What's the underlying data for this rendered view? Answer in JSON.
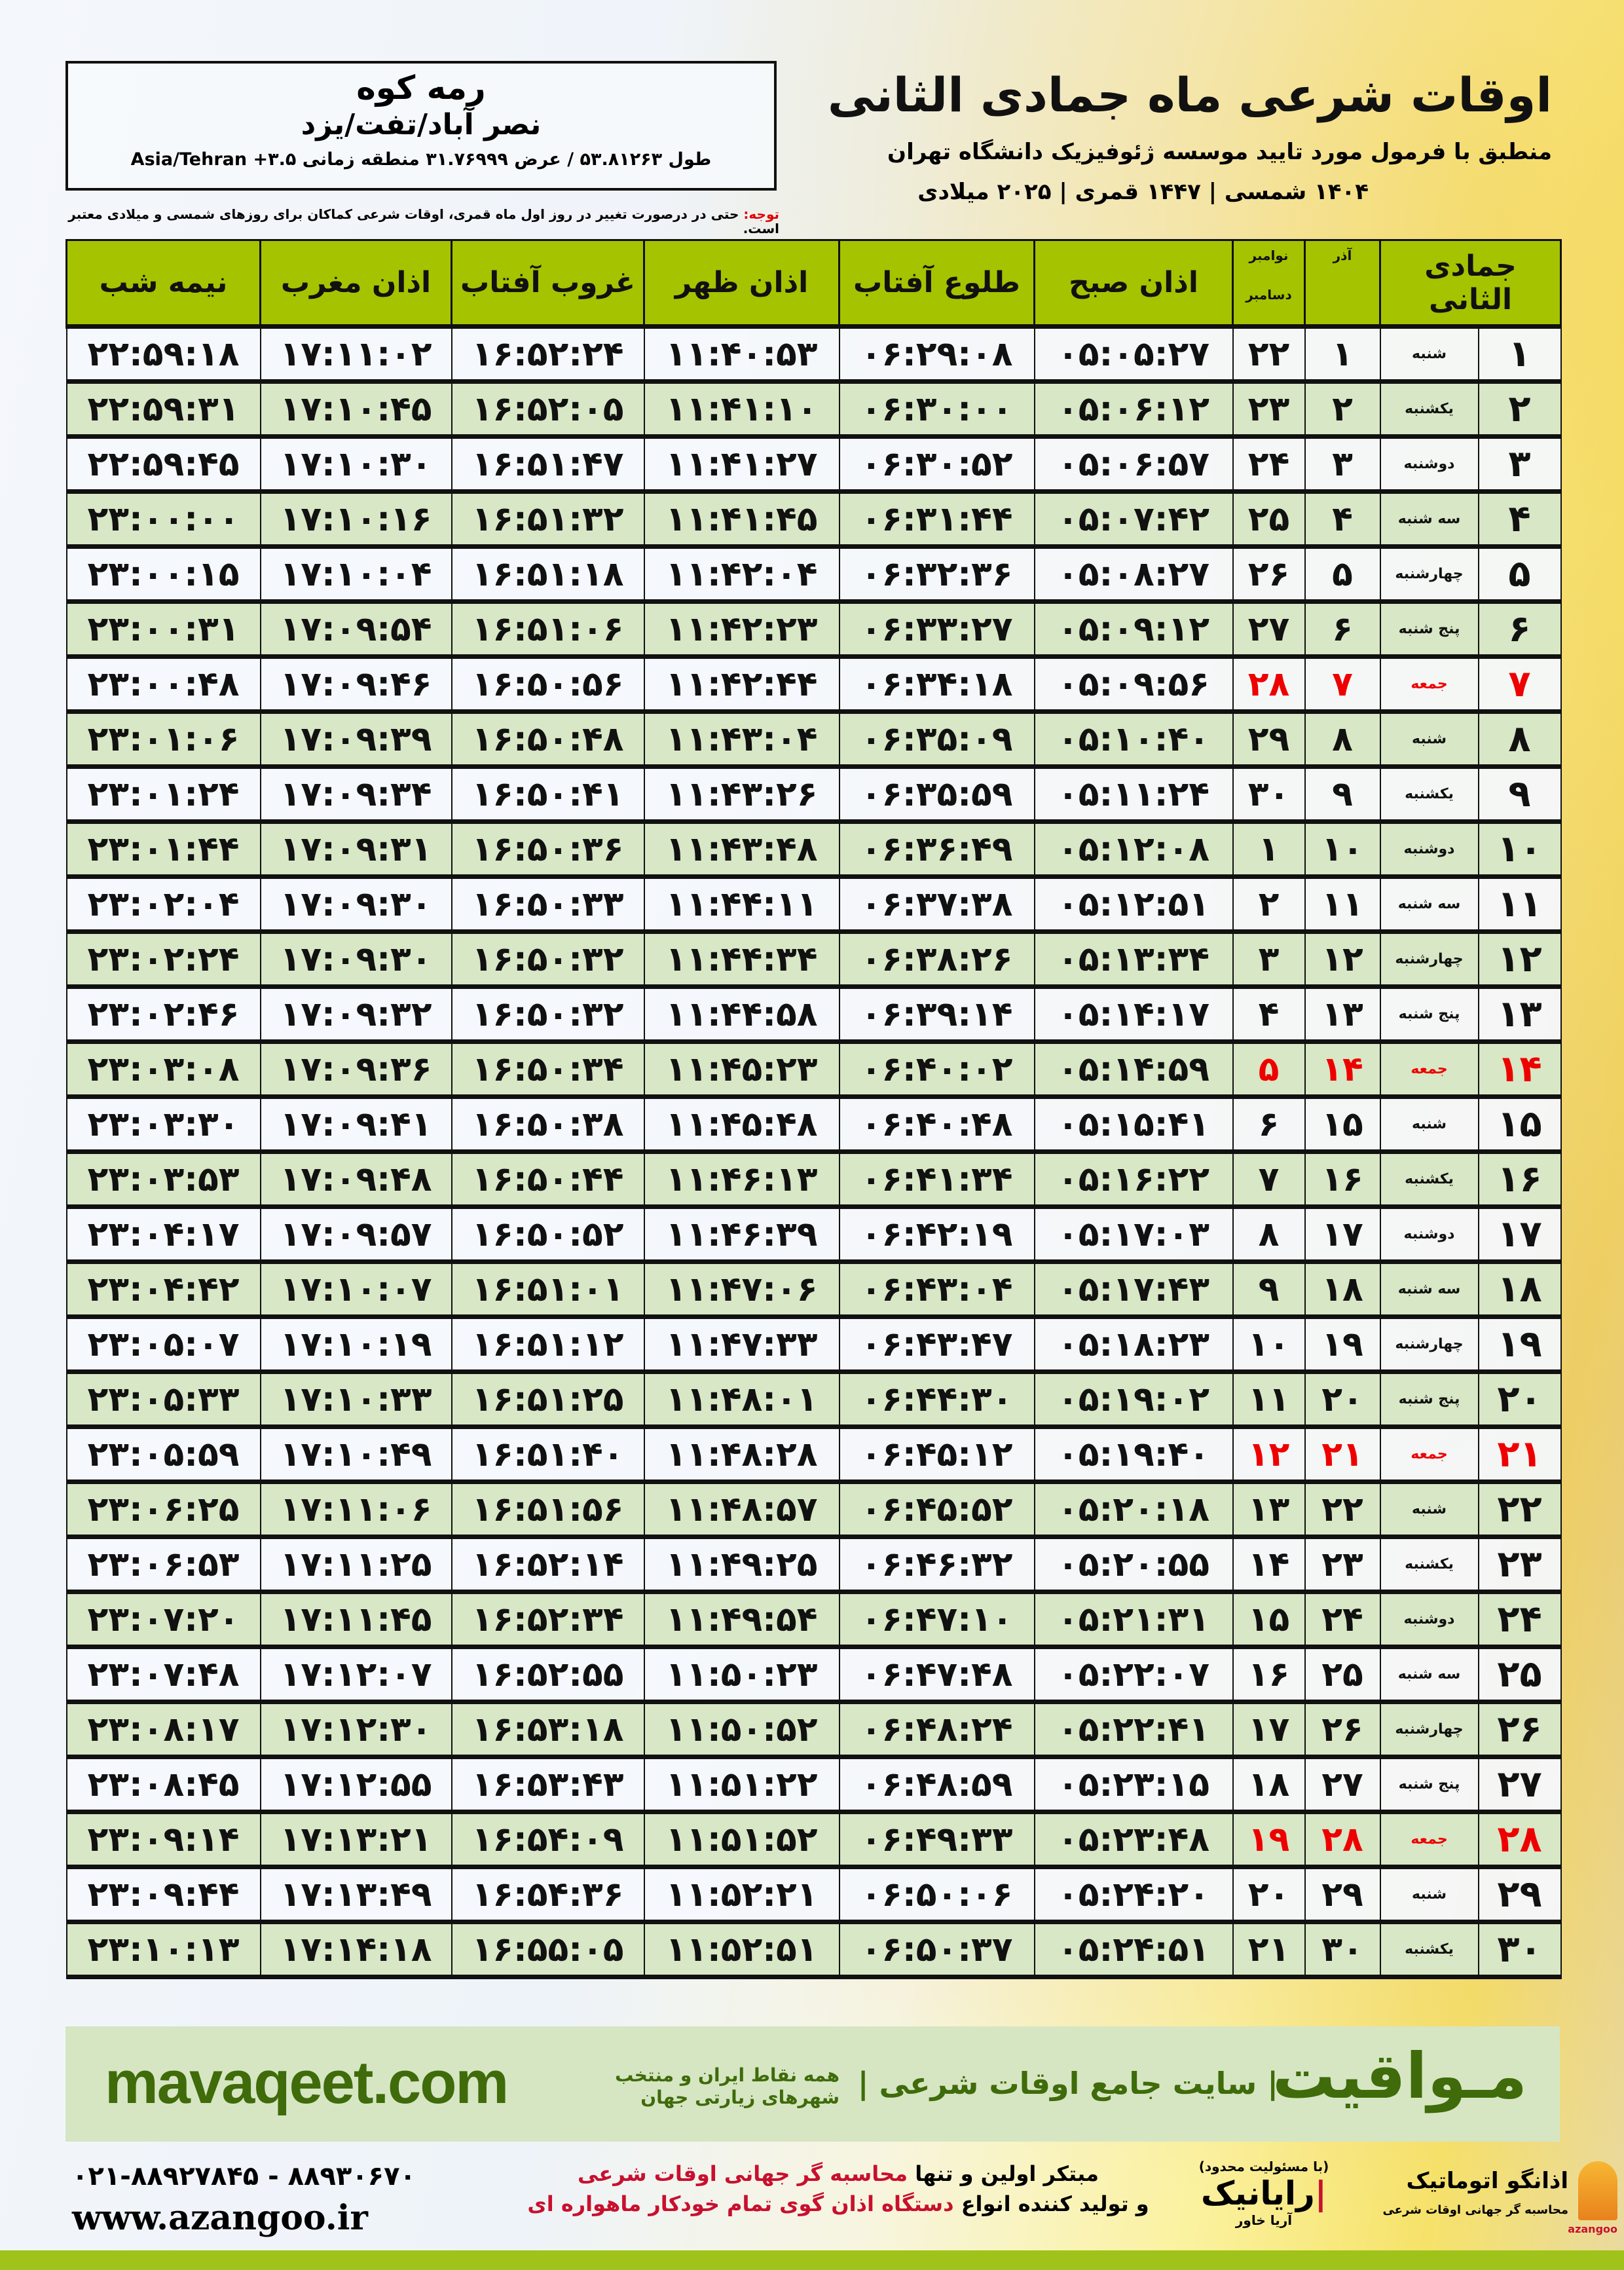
{
  "location": {
    "name": "رمه کوه",
    "region": "نصر آباد/تفت/یزد",
    "coords": "طول ۵۳.۸۱۲۶۳ / عرض ۳۱.۷۶۹۹۹ منطقه زمانی ۳.۵+ Asia/Tehran"
  },
  "header": {
    "title": "اوقات شرعی ماه جمادی الثانی",
    "subtitle": "منطبق با فرمول مورد تایید موسسه ژئوفیزیک دانشگاه تهران",
    "years": "۱۴۰۴ شمسی | ۱۴۴۷ قمری | ۲۰۲۵ میلادی"
  },
  "note": {
    "label": "توجه:",
    "text": " حتی در درصورت تغییر در روز اول ماه قمری، اوقات شرعی کماکان برای روزهای شمسی و میلادی معتبر است."
  },
  "colors": {
    "header": "#a6c300",
    "even_row": "#d8e7c5",
    "friday": "#ee0000",
    "brand_green": "#3f6b0a"
  },
  "columns": {
    "hijri": "جمادی الثانی",
    "azar": "آذر",
    "gregorian_top": "نوامبر",
    "gregorian_bottom": "دسامبر",
    "fajr": "اذان صبح",
    "sunrise": "طلوع آفتاب",
    "dhuhr": "اذان ظهر",
    "sunset": "غروب آفتاب",
    "maghrib": "اذان مغرب",
    "midnight": "نیمه شب"
  },
  "rows": [
    {
      "h": "۱",
      "wd": "شنبه",
      "az": "۱",
      "g": "۲۲",
      "fajr": "۰۵:۰۵:۲۷",
      "sunrise": "۰۶:۲۹:۰۸",
      "dhuhr": "۱۱:۴۰:۵۳",
      "sunset": "۱۶:۵۲:۲۴",
      "maghrib": "۱۷:۱۱:۰۲",
      "midnight": "۲۲:۵۹:۱۸"
    },
    {
      "h": "۲",
      "wd": "یکشنبه",
      "az": "۲",
      "g": "۲۳",
      "fajr": "۰۵:۰۶:۱۲",
      "sunrise": "۰۶:۳۰:۰۰",
      "dhuhr": "۱۱:۴۱:۱۰",
      "sunset": "۱۶:۵۲:۰۵",
      "maghrib": "۱۷:۱۰:۴۵",
      "midnight": "۲۲:۵۹:۳۱"
    },
    {
      "h": "۳",
      "wd": "دوشنبه",
      "az": "۳",
      "g": "۲۴",
      "fajr": "۰۵:۰۶:۵۷",
      "sunrise": "۰۶:۳۰:۵۲",
      "dhuhr": "۱۱:۴۱:۲۷",
      "sunset": "۱۶:۵۱:۴۷",
      "maghrib": "۱۷:۱۰:۳۰",
      "midnight": "۲۲:۵۹:۴۵"
    },
    {
      "h": "۴",
      "wd": "سه شنبه",
      "az": "۴",
      "g": "۲۵",
      "fajr": "۰۵:۰۷:۴۲",
      "sunrise": "۰۶:۳۱:۴۴",
      "dhuhr": "۱۱:۴۱:۴۵",
      "sunset": "۱۶:۵۱:۳۲",
      "maghrib": "۱۷:۱۰:۱۶",
      "midnight": "۲۳:۰۰:۰۰"
    },
    {
      "h": "۵",
      "wd": "چهارشنبه",
      "az": "۵",
      "g": "۲۶",
      "fajr": "۰۵:۰۸:۲۷",
      "sunrise": "۰۶:۳۲:۳۶",
      "dhuhr": "۱۱:۴۲:۰۴",
      "sunset": "۱۶:۵۱:۱۸",
      "maghrib": "۱۷:۱۰:۰۴",
      "midnight": "۲۳:۰۰:۱۵"
    },
    {
      "h": "۶",
      "wd": "پنج شنبه",
      "az": "۶",
      "g": "۲۷",
      "fajr": "۰۵:۰۹:۱۲",
      "sunrise": "۰۶:۳۳:۲۷",
      "dhuhr": "۱۱:۴۲:۲۳",
      "sunset": "۱۶:۵۱:۰۶",
      "maghrib": "۱۷:۰۹:۵۴",
      "midnight": "۲۳:۰۰:۳۱"
    },
    {
      "h": "۷",
      "wd": "جمعه",
      "az": "۷",
      "g": "۲۸",
      "fajr": "۰۵:۰۹:۵۶",
      "sunrise": "۰۶:۳۴:۱۸",
      "dhuhr": "۱۱:۴۲:۴۴",
      "sunset": "۱۶:۵۰:۵۶",
      "maghrib": "۱۷:۰۹:۴۶",
      "midnight": "۲۳:۰۰:۴۸",
      "friday": true
    },
    {
      "h": "۸",
      "wd": "شنبه",
      "az": "۸",
      "g": "۲۹",
      "fajr": "۰۵:۱۰:۴۰",
      "sunrise": "۰۶:۳۵:۰۹",
      "dhuhr": "۱۱:۴۳:۰۴",
      "sunset": "۱۶:۵۰:۴۸",
      "maghrib": "۱۷:۰۹:۳۹",
      "midnight": "۲۳:۰۱:۰۶"
    },
    {
      "h": "۹",
      "wd": "یکشنبه",
      "az": "۹",
      "g": "۳۰",
      "fajr": "۰۵:۱۱:۲۴",
      "sunrise": "۰۶:۳۵:۵۹",
      "dhuhr": "۱۱:۴۳:۲۶",
      "sunset": "۱۶:۵۰:۴۱",
      "maghrib": "۱۷:۰۹:۳۴",
      "midnight": "۲۳:۰۱:۲۴"
    },
    {
      "h": "۱۰",
      "wd": "دوشنبه",
      "az": "۱۰",
      "g": "۱",
      "fajr": "۰۵:۱۲:۰۸",
      "sunrise": "۰۶:۳۶:۴۹",
      "dhuhr": "۱۱:۴۳:۴۸",
      "sunset": "۱۶:۵۰:۳۶",
      "maghrib": "۱۷:۰۹:۳۱",
      "midnight": "۲۳:۰۱:۴۴"
    },
    {
      "h": "۱۱",
      "wd": "سه شنبه",
      "az": "۱۱",
      "g": "۲",
      "fajr": "۰۵:۱۲:۵۱",
      "sunrise": "۰۶:۳۷:۳۸",
      "dhuhr": "۱۱:۴۴:۱۱",
      "sunset": "۱۶:۵۰:۳۳",
      "maghrib": "۱۷:۰۹:۳۰",
      "midnight": "۲۳:۰۲:۰۴"
    },
    {
      "h": "۱۲",
      "wd": "چهارشنبه",
      "az": "۱۲",
      "g": "۳",
      "fajr": "۰۵:۱۳:۳۴",
      "sunrise": "۰۶:۳۸:۲۶",
      "dhuhr": "۱۱:۴۴:۳۴",
      "sunset": "۱۶:۵۰:۳۲",
      "maghrib": "۱۷:۰۹:۳۰",
      "midnight": "۲۳:۰۲:۲۴"
    },
    {
      "h": "۱۳",
      "wd": "پنج شنبه",
      "az": "۱۳",
      "g": "۴",
      "fajr": "۰۵:۱۴:۱۷",
      "sunrise": "۰۶:۳۹:۱۴",
      "dhuhr": "۱۱:۴۴:۵۸",
      "sunset": "۱۶:۵۰:۳۲",
      "maghrib": "۱۷:۰۹:۳۲",
      "midnight": "۲۳:۰۲:۴۶"
    },
    {
      "h": "۱۴",
      "wd": "جمعه",
      "az": "۱۴",
      "g": "۵",
      "fajr": "۰۵:۱۴:۵۹",
      "sunrise": "۰۶:۴۰:۰۲",
      "dhuhr": "۱۱:۴۵:۲۳",
      "sunset": "۱۶:۵۰:۳۴",
      "maghrib": "۱۷:۰۹:۳۶",
      "midnight": "۲۳:۰۳:۰۸",
      "friday": true
    },
    {
      "h": "۱۵",
      "wd": "شنبه",
      "az": "۱۵",
      "g": "۶",
      "fajr": "۰۵:۱۵:۴۱",
      "sunrise": "۰۶:۴۰:۴۸",
      "dhuhr": "۱۱:۴۵:۴۸",
      "sunset": "۱۶:۵۰:۳۸",
      "maghrib": "۱۷:۰۹:۴۱",
      "midnight": "۲۳:۰۳:۳۰"
    },
    {
      "h": "۱۶",
      "wd": "یکشنبه",
      "az": "۱۶",
      "g": "۷",
      "fajr": "۰۵:۱۶:۲۲",
      "sunrise": "۰۶:۴۱:۳۴",
      "dhuhr": "۱۱:۴۶:۱۳",
      "sunset": "۱۶:۵۰:۴۴",
      "maghrib": "۱۷:۰۹:۴۸",
      "midnight": "۲۳:۰۳:۵۳"
    },
    {
      "h": "۱۷",
      "wd": "دوشنبه",
      "az": "۱۷",
      "g": "۸",
      "fajr": "۰۵:۱۷:۰۳",
      "sunrise": "۰۶:۴۲:۱۹",
      "dhuhr": "۱۱:۴۶:۳۹",
      "sunset": "۱۶:۵۰:۵۲",
      "maghrib": "۱۷:۰۹:۵۷",
      "midnight": "۲۳:۰۴:۱۷"
    },
    {
      "h": "۱۸",
      "wd": "سه شنبه",
      "az": "۱۸",
      "g": "۹",
      "fajr": "۰۵:۱۷:۴۳",
      "sunrise": "۰۶:۴۳:۰۴",
      "dhuhr": "۱۱:۴۷:۰۶",
      "sunset": "۱۶:۵۱:۰۱",
      "maghrib": "۱۷:۱۰:۰۷",
      "midnight": "۲۳:۰۴:۴۲"
    },
    {
      "h": "۱۹",
      "wd": "چهارشنبه",
      "az": "۱۹",
      "g": "۱۰",
      "fajr": "۰۵:۱۸:۲۳",
      "sunrise": "۰۶:۴۳:۴۷",
      "dhuhr": "۱۱:۴۷:۳۳",
      "sunset": "۱۶:۵۱:۱۲",
      "maghrib": "۱۷:۱۰:۱۹",
      "midnight": "۲۳:۰۵:۰۷"
    },
    {
      "h": "۲۰",
      "wd": "پنج شنبه",
      "az": "۲۰",
      "g": "۱۱",
      "fajr": "۰۵:۱۹:۰۲",
      "sunrise": "۰۶:۴۴:۳۰",
      "dhuhr": "۱۱:۴۸:۰۱",
      "sunset": "۱۶:۵۱:۲۵",
      "maghrib": "۱۷:۱۰:۳۳",
      "midnight": "۲۳:۰۵:۳۳"
    },
    {
      "h": "۲۱",
      "wd": "جمعه",
      "az": "۲۱",
      "g": "۱۲",
      "fajr": "۰۵:۱۹:۴۰",
      "sunrise": "۰۶:۴۵:۱۲",
      "dhuhr": "۱۱:۴۸:۲۸",
      "sunset": "۱۶:۵۱:۴۰",
      "maghrib": "۱۷:۱۰:۴۹",
      "midnight": "۲۳:۰۵:۵۹",
      "friday": true
    },
    {
      "h": "۲۲",
      "wd": "شنبه",
      "az": "۲۲",
      "g": "۱۳",
      "fajr": "۰۵:۲۰:۱۸",
      "sunrise": "۰۶:۴۵:۵۲",
      "dhuhr": "۱۱:۴۸:۵۷",
      "sunset": "۱۶:۵۱:۵۶",
      "maghrib": "۱۷:۱۱:۰۶",
      "midnight": "۲۳:۰۶:۲۵"
    },
    {
      "h": "۲۳",
      "wd": "یکشنبه",
      "az": "۲۳",
      "g": "۱۴",
      "fajr": "۰۵:۲۰:۵۵",
      "sunrise": "۰۶:۴۶:۳۲",
      "dhuhr": "۱۱:۴۹:۲۵",
      "sunset": "۱۶:۵۲:۱۴",
      "maghrib": "۱۷:۱۱:۲۵",
      "midnight": "۲۳:۰۶:۵۳"
    },
    {
      "h": "۲۴",
      "wd": "دوشنبه",
      "az": "۲۴",
      "g": "۱۵",
      "fajr": "۰۵:۲۱:۳۱",
      "sunrise": "۰۶:۴۷:۱۰",
      "dhuhr": "۱۱:۴۹:۵۴",
      "sunset": "۱۶:۵۲:۳۴",
      "maghrib": "۱۷:۱۱:۴۵",
      "midnight": "۲۳:۰۷:۲۰"
    },
    {
      "h": "۲۵",
      "wd": "سه شنبه",
      "az": "۲۵",
      "g": "۱۶",
      "fajr": "۰۵:۲۲:۰۷",
      "sunrise": "۰۶:۴۷:۴۸",
      "dhuhr": "۱۱:۵۰:۲۳",
      "sunset": "۱۶:۵۲:۵۵",
      "maghrib": "۱۷:۱۲:۰۷",
      "midnight": "۲۳:۰۷:۴۸"
    },
    {
      "h": "۲۶",
      "wd": "چهارشنبه",
      "az": "۲۶",
      "g": "۱۷",
      "fajr": "۰۵:۲۲:۴۱",
      "sunrise": "۰۶:۴۸:۲۴",
      "dhuhr": "۱۱:۵۰:۵۲",
      "sunset": "۱۶:۵۳:۱۸",
      "maghrib": "۱۷:۱۲:۳۰",
      "midnight": "۲۳:۰۸:۱۷"
    },
    {
      "h": "۲۷",
      "wd": "پنج شنبه",
      "az": "۲۷",
      "g": "۱۸",
      "fajr": "۰۵:۲۳:۱۵",
      "sunrise": "۰۶:۴۸:۵۹",
      "dhuhr": "۱۱:۵۱:۲۲",
      "sunset": "۱۶:۵۳:۴۳",
      "maghrib": "۱۷:۱۲:۵۵",
      "midnight": "۲۳:۰۸:۴۵"
    },
    {
      "h": "۲۸",
      "wd": "جمعه",
      "az": "۲۸",
      "g": "۱۹",
      "fajr": "۰۵:۲۳:۴۸",
      "sunrise": "۰۶:۴۹:۳۳",
      "dhuhr": "۱۱:۵۱:۵۲",
      "sunset": "۱۶:۵۴:۰۹",
      "maghrib": "۱۷:۱۳:۲۱",
      "midnight": "۲۳:۰۹:۱۴",
      "friday": true
    },
    {
      "h": "۲۹",
      "wd": "شنبه",
      "az": "۲۹",
      "g": "۲۰",
      "fajr": "۰۵:۲۴:۲۰",
      "sunrise": "۰۶:۵۰:۰۶",
      "dhuhr": "۱۱:۵۲:۲۱",
      "sunset": "۱۶:۵۴:۳۶",
      "maghrib": "۱۷:۱۳:۴۹",
      "midnight": "۲۳:۰۹:۴۴"
    },
    {
      "h": "۳۰",
      "wd": "یکشنبه",
      "az": "۳۰",
      "g": "۲۱",
      "fajr": "۰۵:۲۴:۵۱",
      "sunrise": "۰۶:۵۰:۳۷",
      "dhuhr": "۱۱:۵۲:۵۱",
      "sunset": "۱۶:۵۵:۰۵",
      "maghrib": "۱۷:۱۴:۱۸",
      "midnight": "۲۳:۱۰:۱۳"
    }
  ],
  "footer": {
    "site": "mavaqeet.com",
    "brand": "مـواقیت",
    "tagline": "| سایت جامع اوقات شرعی |",
    "tagline2": "همه نقاط ایران و منتخب شهرهای زیارتی جهان",
    "phone": "۰۲۱-۸۸۹۲۷۸۴۵ - ۸۸۹۳۰۶۷۰",
    "www": "www.azangoo.ir",
    "promo1a": "مبتکر اولین و تنها ",
    "promo1b": "محاسبه گر جهانی اوقات شرعی",
    "promo2a": "و تولید کننده انواع ",
    "promo2b": "دستگاه اذان گوی تمام خودکار ماهواره ای",
    "logo1_small": "(با مسئولیت محدود)",
    "logo1": "رایانیک",
    "logo1_sub": "آریا خاور",
    "logo2": "اذانگو اتوماتیک",
    "logo2_sub": "محاسبه گر جهانی اوقات شرعی",
    "logo2_latin": "azangoo"
  }
}
